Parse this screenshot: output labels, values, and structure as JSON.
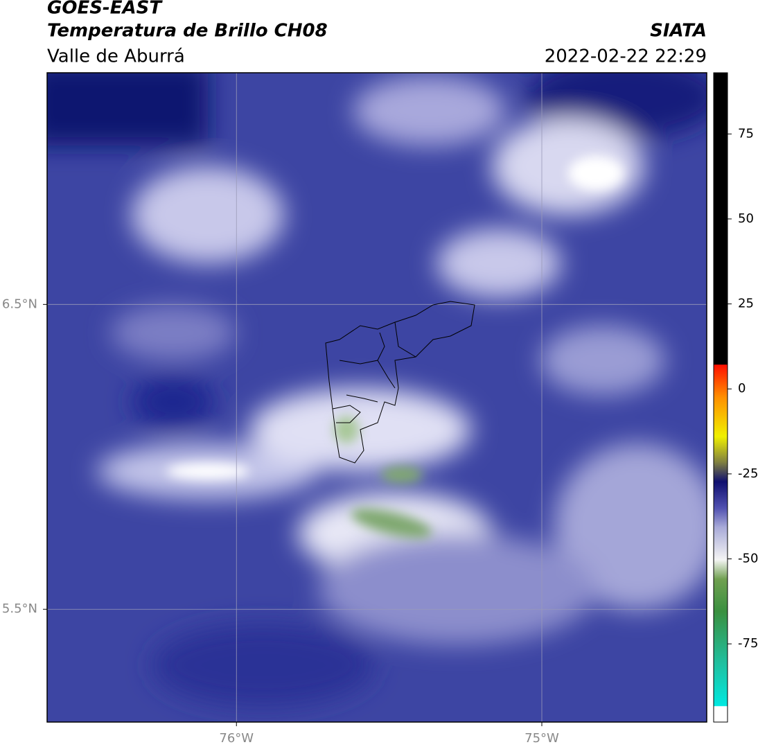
{
  "header": {
    "title": "GOES-EAST",
    "subtitle": "Temperatura de Brillo CH08",
    "region": "Valle de Aburrá",
    "source": "SIATA",
    "datetime": "2022-02-22 22:29"
  },
  "map": {
    "xlim": [
      -76.62,
      -74.46
    ],
    "ylim": [
      5.13,
      7.26
    ],
    "xticks": [
      {
        "value": -76,
        "label": "76°W"
      },
      {
        "value": -75,
        "label": "75°W"
      }
    ],
    "yticks": [
      {
        "value": 6.5,
        "label": "6.5°N"
      },
      {
        "value": 5.5,
        "label": "5.5°N"
      }
    ],
    "grid": true
  },
  "colorbar": {
    "lim": [
      -98,
      93
    ],
    "ticks": [
      75,
      50,
      25,
      0,
      -25,
      -50,
      -75
    ]
  }
}
